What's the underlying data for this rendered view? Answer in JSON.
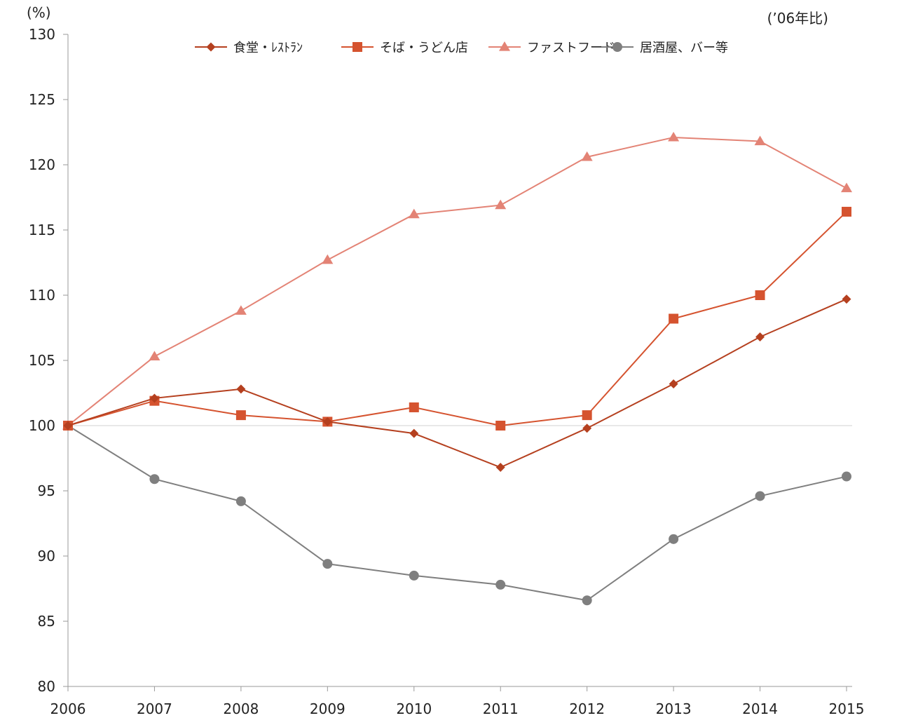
{
  "chart_data": {
    "type": "line",
    "title": "",
    "xlabel": "",
    "ylabel": "",
    "y_unit": "(%)",
    "note": "(’06年比)",
    "x": [
      "2006",
      "2007",
      "2008",
      "2009",
      "2010",
      "2011",
      "2012",
      "2013",
      "2014",
      "2015"
    ],
    "ylim": [
      80,
      130
    ],
    "yticks": [
      80,
      85,
      90,
      95,
      100,
      105,
      110,
      115,
      120,
      125,
      130
    ],
    "reference_line": 100,
    "grid": false,
    "legend_placement": "top",
    "series": [
      {
        "name": "食堂・ﾚｽﾄﾗﾝ",
        "marker": "diamond",
        "color": "#b5401f",
        "values": [
          100,
          102.1,
          102.8,
          100.3,
          99.4,
          96.8,
          99.8,
          103.2,
          106.8,
          109.7
        ]
      },
      {
        "name": "そば・うどん店",
        "marker": "square",
        "color": "#d5532f",
        "values": [
          100,
          101.9,
          100.8,
          100.3,
          101.4,
          100.0,
          100.8,
          108.2,
          110.0,
          116.4
        ]
      },
      {
        "name": "ファストフード",
        "marker": "triangle",
        "color": "#e38375",
        "values": [
          100,
          105.3,
          108.8,
          112.7,
          116.2,
          116.9,
          120.6,
          122.1,
          121.8,
          118.2
        ]
      },
      {
        "name": "居酒屋、バー等",
        "marker": "circle",
        "color": "#7f7f7f",
        "values": [
          100,
          95.9,
          94.2,
          89.4,
          88.5,
          87.8,
          86.6,
          91.3,
          94.6,
          96.1
        ]
      }
    ]
  }
}
